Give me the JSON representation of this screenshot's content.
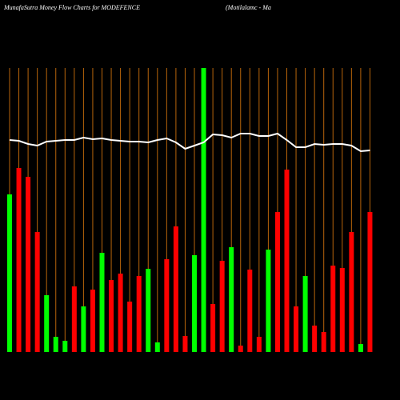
{
  "chart_data": {
    "type": "bar",
    "title": "MunafaSutra  Money Flow  Charts for MODEFENCE",
    "subtitle": "(Motilalamc - Ma",
    "ylim": [
      0,
      360
    ],
    "grid": true,
    "grid_color": "#b8650a",
    "line_color": "#ffffff",
    "series": [
      {
        "name": "Money Flow",
        "colors": [
          "#00ff00",
          "#ff0000",
          "#ff0000",
          "#ff0000",
          "#00ff00",
          "#00ff00",
          "#00ff00",
          "#ff0000",
          "#00ff00",
          "#ff0000",
          "#00ff00",
          "#ff0000",
          "#ff0000",
          "#ff0000",
          "#ff0000",
          "#00ff00",
          "#00ff00",
          "#ff0000",
          "#ff0000",
          "#ff0000",
          "#00ff00",
          "#00ff00",
          "#ff0000",
          "#ff0000",
          "#00ff00",
          "#ff0000",
          "#ff0000",
          "#ff0000",
          "#00ff00",
          "#ff0000",
          "#ff0000",
          "#ff0000",
          "#00ff00",
          "#ff0000",
          "#ff0000",
          "#ff0000",
          "#ff0000",
          "#ff0000",
          "#00ff00",
          "#ff0000"
        ],
        "values": [
          197,
          230,
          219,
          150,
          71,
          19,
          14,
          82,
          57,
          78,
          124,
          90,
          98,
          63,
          95,
          104,
          12,
          116,
          157,
          20,
          121,
          355,
          60,
          114,
          131,
          8,
          103,
          19,
          128,
          175,
          228,
          57,
          95,
          33,
          25,
          108,
          105,
          150,
          10,
          175
        ]
      },
      {
        "name": "Price",
        "values": [
          265,
          264,
          260,
          258,
          263,
          264,
          265,
          265,
          268,
          266,
          267,
          265,
          264,
          263,
          263,
          262,
          265,
          267,
          262,
          254,
          258,
          262,
          272,
          271,
          268,
          273,
          273,
          270,
          270,
          273,
          265,
          256,
          256,
          260,
          259,
          260,
          260,
          258,
          251,
          252
        ]
      }
    ]
  }
}
